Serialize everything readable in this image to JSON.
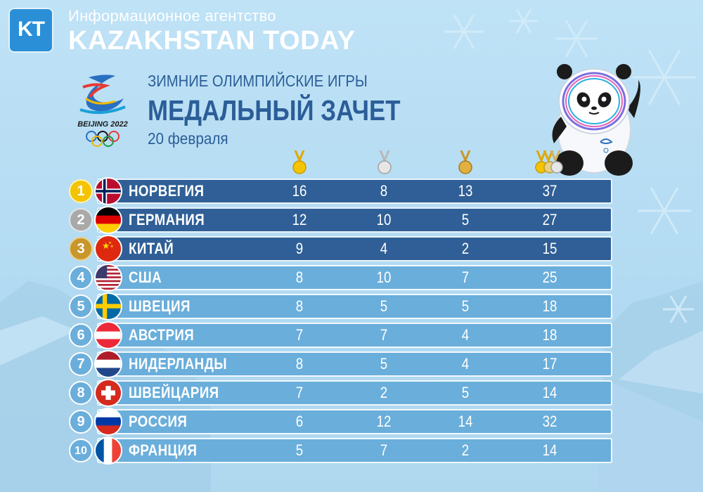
{
  "header": {
    "logo_text": "KT",
    "subtitle": "Информационное агентство",
    "title": "KAZAKHSTAN TODAY"
  },
  "olympics": {
    "emblem_text": "BEIJING 2022",
    "line1": "ЗИМНИЕ ОЛИМПИЙСКИЕ ИГРЫ",
    "line2": "МЕДАЛЬНЫЙ ЗАЧЕТ",
    "date": "20 февраля"
  },
  "columns": [
    "gold",
    "silver",
    "bronze",
    "total"
  ],
  "colors": {
    "top_row": "#2f5f96",
    "row": "#6aaedb",
    "gold": "#f4c400",
    "silver": "#a9a9a9",
    "bronze": "#c8962a",
    "title": "#2b5e98"
  },
  "rows": [
    {
      "rank": "1",
      "country": "НОРВЕГИЯ",
      "gold": "16",
      "silver": "8",
      "bronze": "13",
      "total": "37"
    },
    {
      "rank": "2",
      "country": "ГЕРМАНИЯ",
      "gold": "12",
      "silver": "10",
      "bronze": "5",
      "total": "27"
    },
    {
      "rank": "3",
      "country": "КИТАЙ",
      "gold": "9",
      "silver": "4",
      "bronze": "2",
      "total": "15"
    },
    {
      "rank": "4",
      "country": "США",
      "gold": "8",
      "silver": "10",
      "bronze": "7",
      "total": "25"
    },
    {
      "rank": "5",
      "country": "ШВЕЦИЯ",
      "gold": "8",
      "silver": "5",
      "bronze": "5",
      "total": "18"
    },
    {
      "rank": "6",
      "country": "АВСТРИЯ",
      "gold": "7",
      "silver": "7",
      "bronze": "4",
      "total": "18"
    },
    {
      "rank": "7",
      "country": "НИДЕРЛАНДЫ",
      "gold": "8",
      "silver": "5",
      "bronze": "4",
      "total": "17"
    },
    {
      "rank": "8",
      "country": "ШВЕЙЦАРИЯ",
      "gold": "7",
      "silver": "2",
      "bronze": "5",
      "total": "14"
    },
    {
      "rank": "9",
      "country": "РОССИЯ",
      "gold": "6",
      "silver": "12",
      "bronze": "14",
      "total": "32"
    },
    {
      "rank": "10",
      "country": "ФРАНЦИЯ",
      "gold": "5",
      "silver": "7",
      "bronze": "2",
      "total": "14"
    }
  ]
}
